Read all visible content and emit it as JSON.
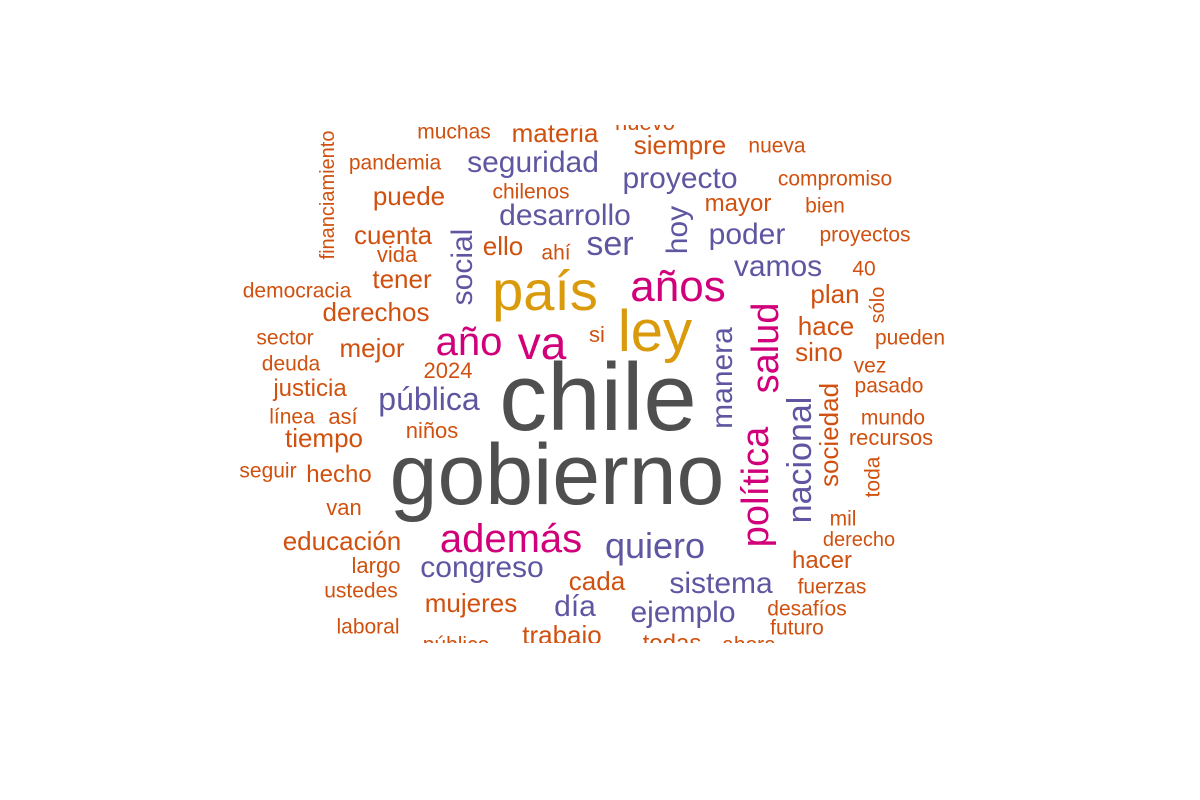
{
  "words": [
    {
      "text": "chile",
      "color": "gray"
    },
    {
      "text": "gobierno",
      "color": "gray"
    },
    {
      "text": "país",
      "color": "gold"
    },
    {
      "text": "ley",
      "color": "gold"
    },
    {
      "text": "años",
      "color": "magenta"
    },
    {
      "text": "va",
      "color": "magenta"
    },
    {
      "text": "año",
      "color": "magenta"
    },
    {
      "text": "además",
      "color": "magenta"
    },
    {
      "text": "salud",
      "color": "magenta"
    },
    {
      "text": "política",
      "color": "magenta"
    },
    {
      "text": "quiero",
      "color": "purple"
    },
    {
      "text": "nacional",
      "color": "purple"
    },
    {
      "text": "manera",
      "color": "purple"
    },
    {
      "text": "pública",
      "color": "purple"
    },
    {
      "text": "ser",
      "color": "purple"
    },
    {
      "text": "desarrollo",
      "color": "purple"
    },
    {
      "text": "seguridad",
      "color": "purple"
    },
    {
      "text": "proyecto",
      "color": "purple"
    },
    {
      "text": "social",
      "color": "purple"
    },
    {
      "text": "hoy",
      "color": "purple"
    },
    {
      "text": "poder",
      "color": "purple"
    },
    {
      "text": "vamos",
      "color": "purple"
    },
    {
      "text": "congreso",
      "color": "purple"
    },
    {
      "text": "sistema",
      "color": "purple"
    },
    {
      "text": "ejemplo",
      "color": "purple"
    },
    {
      "text": "día",
      "color": "purple"
    },
    {
      "text": "sociedad",
      "color": "orange"
    },
    {
      "text": "materia",
      "color": "orange"
    },
    {
      "text": "siempre",
      "color": "orange"
    },
    {
      "text": "muchas",
      "color": "orange"
    },
    {
      "text": "nuevo",
      "color": "orange"
    },
    {
      "text": "nueva",
      "color": "orange"
    },
    {
      "text": "pandemia",
      "color": "orange"
    },
    {
      "text": "financiamiento",
      "color": "orange"
    },
    {
      "text": "compromiso",
      "color": "orange"
    },
    {
      "text": "chilenos",
      "color": "orange"
    },
    {
      "text": "puede",
      "color": "orange"
    },
    {
      "text": "mayor",
      "color": "orange"
    },
    {
      "text": "bien",
      "color": "orange"
    },
    {
      "text": "cuenta",
      "color": "orange"
    },
    {
      "text": "ello",
      "color": "orange"
    },
    {
      "text": "ahí",
      "color": "orange"
    },
    {
      "text": "proyectos",
      "color": "orange"
    },
    {
      "text": "vida",
      "color": "orange"
    },
    {
      "text": "tener",
      "color": "orange"
    },
    {
      "text": "40",
      "color": "orange"
    },
    {
      "text": "democracia",
      "color": "orange"
    },
    {
      "text": "plan",
      "color": "orange"
    },
    {
      "text": "derechos",
      "color": "orange"
    },
    {
      "text": "sólo",
      "color": "orange"
    },
    {
      "text": "hace",
      "color": "orange"
    },
    {
      "text": "sector",
      "color": "orange"
    },
    {
      "text": "si",
      "color": "orange"
    },
    {
      "text": "pueden",
      "color": "orange"
    },
    {
      "text": "mejor",
      "color": "orange"
    },
    {
      "text": "sino",
      "color": "orange"
    },
    {
      "text": "deuda",
      "color": "orange"
    },
    {
      "text": "2024",
      "color": "orange"
    },
    {
      "text": "vez",
      "color": "orange"
    },
    {
      "text": "justicia",
      "color": "orange"
    },
    {
      "text": "pasado",
      "color": "orange"
    },
    {
      "text": "línea",
      "color": "orange"
    },
    {
      "text": "así",
      "color": "orange"
    },
    {
      "text": "mundo",
      "color": "orange"
    },
    {
      "text": "niños",
      "color": "orange"
    },
    {
      "text": "tiempo",
      "color": "orange"
    },
    {
      "text": "recursos",
      "color": "orange"
    },
    {
      "text": "seguir",
      "color": "orange"
    },
    {
      "text": "hecho",
      "color": "orange"
    },
    {
      "text": "toda",
      "color": "orange"
    },
    {
      "text": "van",
      "color": "orange"
    },
    {
      "text": "mil",
      "color": "orange"
    },
    {
      "text": "educación",
      "color": "orange"
    },
    {
      "text": "derecho",
      "color": "orange"
    },
    {
      "text": "hacer",
      "color": "orange"
    },
    {
      "text": "largo",
      "color": "orange"
    },
    {
      "text": "cada",
      "color": "orange"
    },
    {
      "text": "ustedes",
      "color": "orange"
    },
    {
      "text": "fuerzas",
      "color": "orange"
    },
    {
      "text": "mujeres",
      "color": "orange"
    },
    {
      "text": "desafíos",
      "color": "orange"
    },
    {
      "text": "laboral",
      "color": "orange"
    },
    {
      "text": "trabajo",
      "color": "orange"
    },
    {
      "text": "futuro",
      "color": "orange"
    },
    {
      "text": "público",
      "color": "orange"
    },
    {
      "text": "todas",
      "color": "orange"
    },
    {
      "text": "ahora",
      "color": "orange"
    }
  ]
}
